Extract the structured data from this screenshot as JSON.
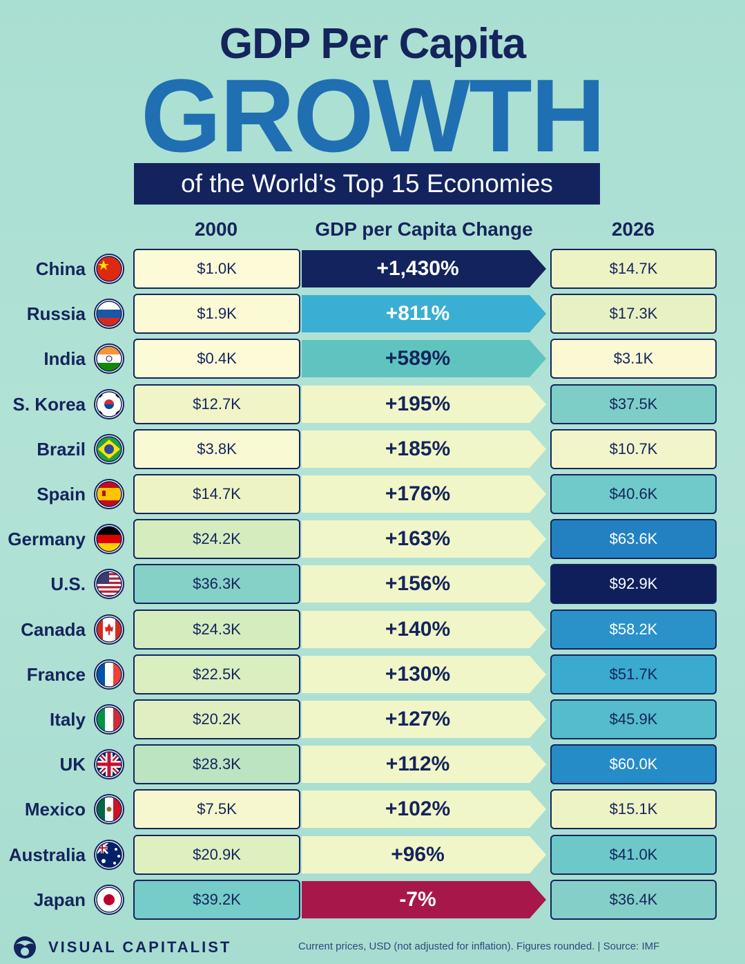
{
  "header": {
    "title_line1": "GDP Per Capita",
    "title_line2": "GROWTH",
    "subtitle": "of the World’s Top 15 Economies"
  },
  "chart_data": {
    "type": "table",
    "columns": [
      "2000",
      "GDP per Capita Change",
      "2026"
    ],
    "rows": [
      {
        "country": "China",
        "flag": "china-flag-icon",
        "y2000": "$1.0K",
        "change": "+1,430%",
        "y2026": "$14.7K"
      },
      {
        "country": "Russia",
        "flag": "russia-flag-icon",
        "y2000": "$1.9K",
        "change": "+811%",
        "y2026": "$17.3K"
      },
      {
        "country": "India",
        "flag": "india-flag-icon",
        "y2000": "$0.4K",
        "change": "+589%",
        "y2026": "$3.1K"
      },
      {
        "country": "S. Korea",
        "flag": "south-korea-flag-icon",
        "y2000": "$12.7K",
        "change": "+195%",
        "y2026": "$37.5K"
      },
      {
        "country": "Brazil",
        "flag": "brazil-flag-icon",
        "y2000": "$3.8K",
        "change": "+185%",
        "y2026": "$10.7K"
      },
      {
        "country": "Spain",
        "flag": "spain-flag-icon",
        "y2000": "$14.7K",
        "change": "+176%",
        "y2026": "$40.6K"
      },
      {
        "country": "Germany",
        "flag": "germany-flag-icon",
        "y2000": "$24.2K",
        "change": "+163%",
        "y2026": "$63.6K"
      },
      {
        "country": "U.S.",
        "flag": "us-flag-icon",
        "y2000": "$36.3K",
        "change": "+156%",
        "y2026": "$92.9K"
      },
      {
        "country": "Canada",
        "flag": "canada-flag-icon",
        "y2000": "$24.3K",
        "change": "+140%",
        "y2026": "$58.2K"
      },
      {
        "country": "France",
        "flag": "france-flag-icon",
        "y2000": "$22.5K",
        "change": "+130%",
        "y2026": "$51.7K"
      },
      {
        "country": "Italy",
        "flag": "italy-flag-icon",
        "y2000": "$20.2K",
        "change": "+127%",
        "y2026": "$45.9K"
      },
      {
        "country": "UK",
        "flag": "uk-flag-icon",
        "y2000": "$28.3K",
        "change": "+112%",
        "y2026": "$60.0K"
      },
      {
        "country": "Mexico",
        "flag": "mexico-flag-icon",
        "y2000": "$7.5K",
        "change": "+102%",
        "y2026": "$15.1K"
      },
      {
        "country": "Australia",
        "flag": "australia-flag-icon",
        "y2000": "$20.9K",
        "change": "+96%",
        "y2026": "$41.0K"
      },
      {
        "country": "Japan",
        "flag": "japan-flag-icon",
        "y2000": "$39.2K",
        "change": "-7%",
        "y2026": "$36.4K"
      }
    ],
    "colors": {
      "navy": "#13235e",
      "negative": "#a8174a",
      "text": "#14245c"
    }
  },
  "footer": {
    "brand": "VISUAL CAPITALIST",
    "note": "Current prices, USD (not adjusted for inflation). Figures rounded. | Source: IMF"
  }
}
